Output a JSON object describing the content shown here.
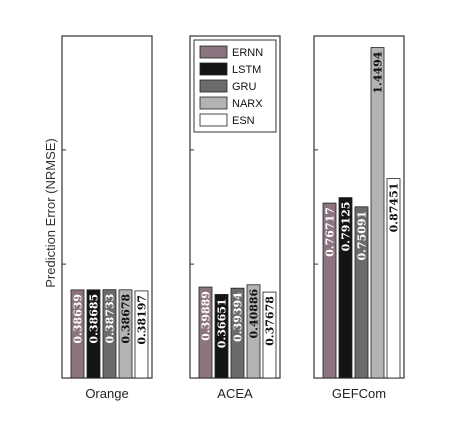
{
  "chart_data": {
    "type": "bar",
    "ylabel": "Prediction Error (NRMSE)",
    "ylim": [
      0,
      1.5
    ],
    "grid": false,
    "legend_position": "top (inside middle panel)",
    "series_names": [
      "ERNN",
      "LSTM",
      "GRU",
      "NARX",
      "ESN"
    ],
    "series_colors": [
      "#8c7380",
      "#141414",
      "#6b6b6b",
      "#b3b3b3",
      "#ffffff"
    ],
    "panels": [
      {
        "label": "Orange",
        "values": [
          0.38639,
          0.38685,
          0.38733,
          0.38678,
          0.38197
        ],
        "labels": [
          "0.38639",
          "0.38685",
          "0.38733",
          "0.38678",
          "0.38197"
        ]
      },
      {
        "label": "ACEA",
        "values": [
          0.39889,
          0.36651,
          0.39394,
          0.40886,
          0.37678
        ],
        "labels": [
          "0.39889",
          "0.36651",
          "0.39394",
          "0.40886",
          "0.37678"
        ]
      },
      {
        "label": "GEFCom",
        "values": [
          0.76717,
          0.79125,
          0.75091,
          1.4494,
          0.87451
        ],
        "labels": [
          "0.76717",
          "0.79125",
          "0.75091",
          "1.4494",
          "0.87451"
        ]
      }
    ]
  }
}
